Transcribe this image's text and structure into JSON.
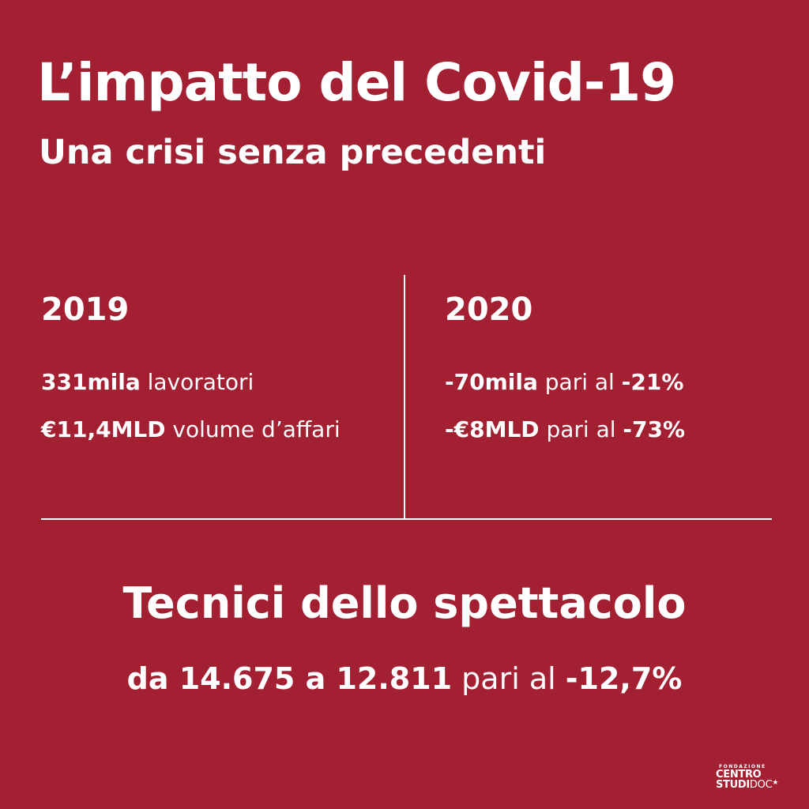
{
  "header": {
    "title": "L’impatto del Covid-19",
    "subtitle": "Una crisi senza precedenti"
  },
  "columns": {
    "left": {
      "year": "2019",
      "row1": {
        "value": "331mila",
        "text": " lavoratori"
      },
      "row2": {
        "value": "€11,4MLD",
        "text": " volume d’affari"
      }
    },
    "right": {
      "year": "2020",
      "row1": {
        "value": "-70mila",
        "mid": " pari al ",
        "pct": "-21%"
      },
      "row2": {
        "value": "-€8MLD",
        "mid": " pari al ",
        "pct": "-73%"
      }
    }
  },
  "bottom": {
    "title": "Tecnici dello spettacolo",
    "stat_prefix": "da 14.675 a 12.811",
    "stat_mid": " pari al ",
    "stat_pct": "-12,7%"
  },
  "logo": {
    "small": "FONDAZIONE",
    "line1": "CENTRO",
    "line2_a": "STUDI",
    "line2_b": "DOC",
    "star": "★",
    "icon": "star-icon"
  },
  "colors": {
    "background": "#a31f32",
    "text": "#ffffff"
  }
}
